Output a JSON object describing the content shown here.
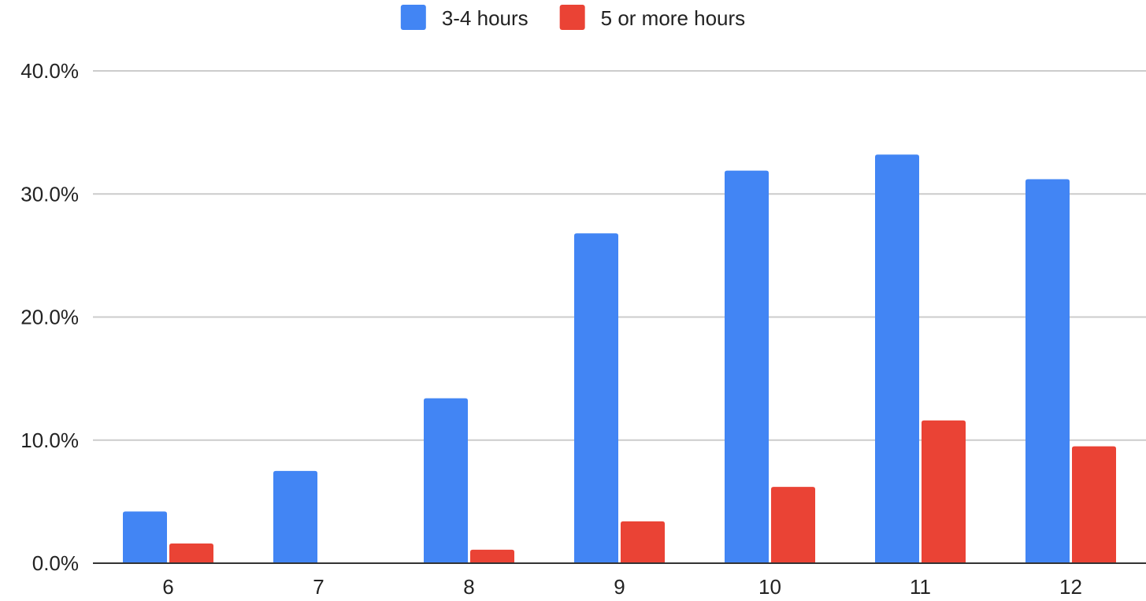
{
  "chart_data": {
    "type": "bar",
    "title": "",
    "xlabel": "",
    "ylabel": "",
    "categories": [
      "6",
      "7",
      "8",
      "9",
      "10",
      "11",
      "12"
    ],
    "series": [
      {
        "name": "3-4 hours",
        "color": "#4285f4",
        "values": [
          4.2,
          7.5,
          13.4,
          26.8,
          31.9,
          33.2,
          31.2
        ]
      },
      {
        "name": "5 or more hours",
        "color": "#ea4335",
        "values": [
          1.6,
          0,
          1.1,
          3.4,
          6.2,
          11.6,
          9.5
        ]
      }
    ],
    "ylim": [
      0,
      40
    ],
    "yticks": [
      0,
      10,
      20,
      30,
      40
    ],
    "ytick_labels": [
      "0.0%",
      "10.0%",
      "20.0%",
      "30.0%",
      "40.0%"
    ],
    "legend_position": "top-center",
    "grid": true
  }
}
